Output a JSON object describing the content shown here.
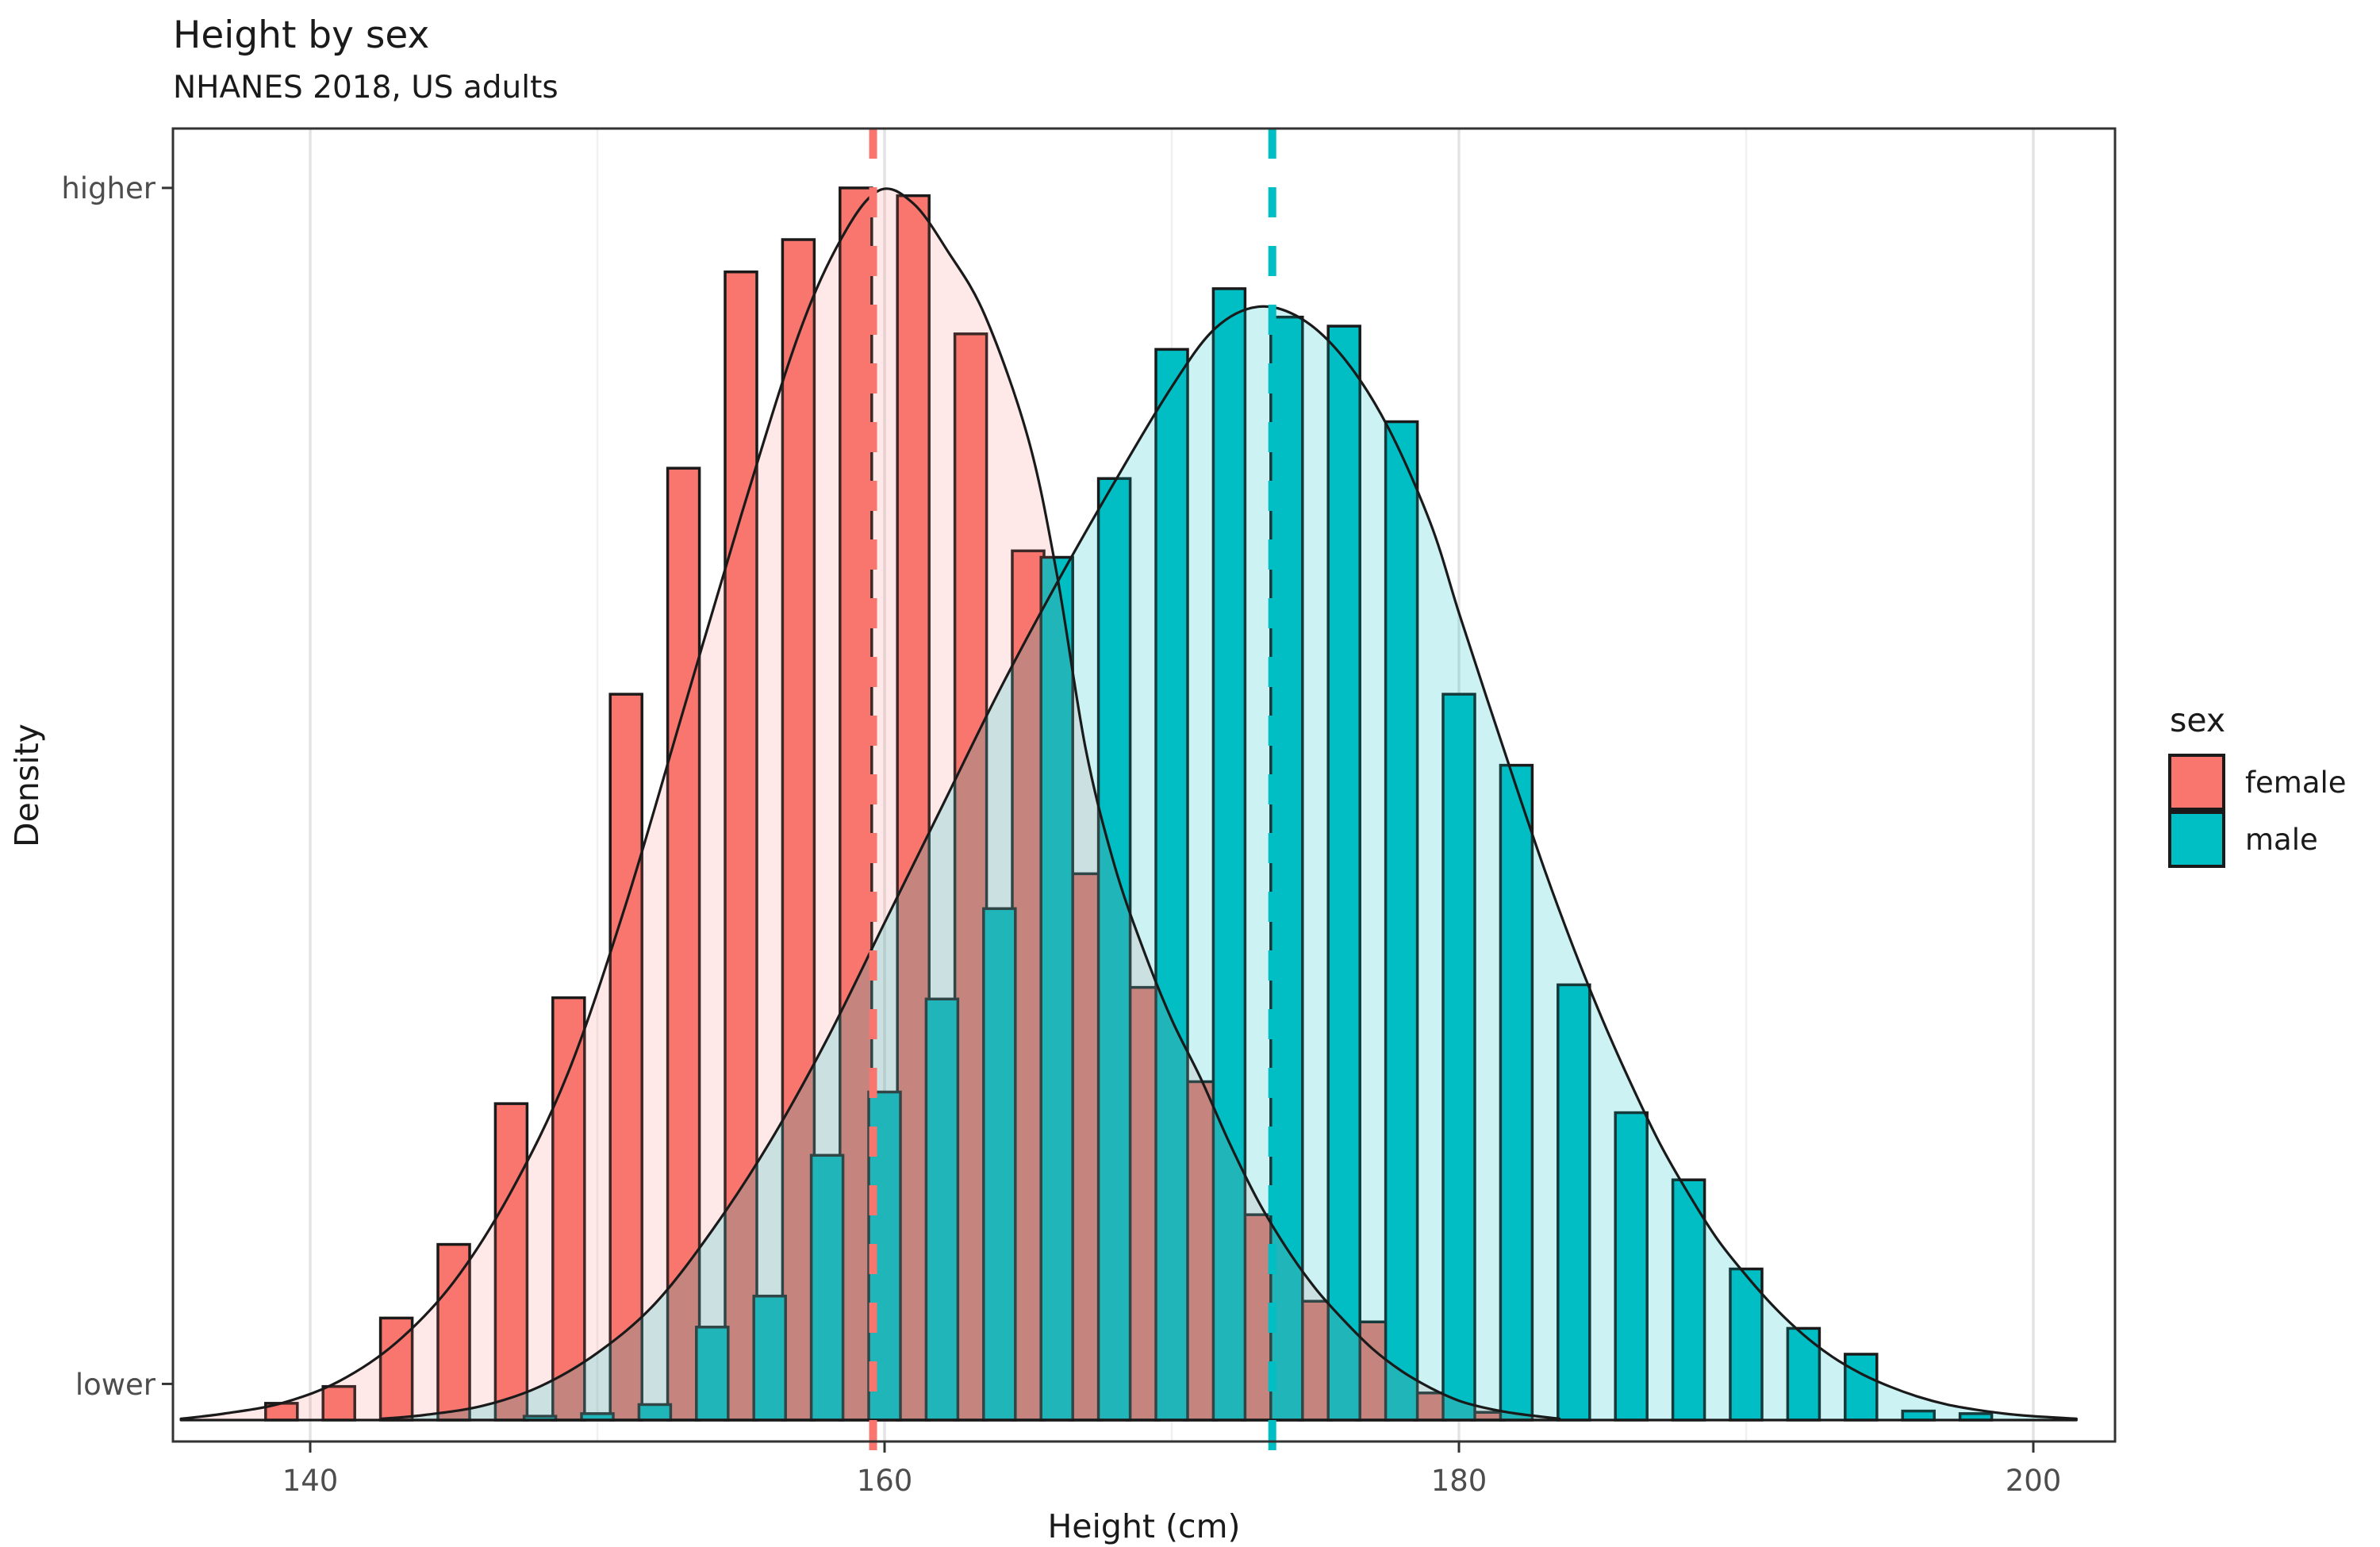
{
  "title": "Height by sex",
  "subtitle": "NHANES 2018, US adults",
  "legend": {
    "title": "sex",
    "items": [
      {
        "label": "female",
        "color": "#F8766D"
      },
      {
        "label": "male",
        "color": "#00BFC4"
      }
    ]
  },
  "chart_data": {
    "type": "histogram+density",
    "title": "Height by sex",
    "subtitle": "NHANES 2018, US adults",
    "x_label": "Height (cm)",
    "y_label": "Density",
    "x_major_ticks": [
      140,
      160,
      180,
      200
    ],
    "x_minor_gridlines": [
      150,
      170,
      190
    ],
    "x_range": [
      135,
      203
    ],
    "y_range_note": "density axis shown qualitatively, 0 = baseline, 1 = panel top",
    "y_tick_labels": [
      {
        "label": "higher",
        "density": 0.954
      },
      {
        "label": "lower",
        "density": 0.028
      }
    ],
    "grid": "vertical-only",
    "legend_position": "right",
    "bin_width_cm": 2,
    "series": [
      {
        "name": "female",
        "color": "#F8766D",
        "area_fill": "rgba(248,118,109,0.16)",
        "mean_height_cm": 159.6,
        "bins": [
          [
            139,
            0.013
          ],
          [
            141,
            0.026
          ],
          [
            143,
            0.079
          ],
          [
            145,
            0.136
          ],
          [
            147,
            0.245
          ],
          [
            149,
            0.327
          ],
          [
            151,
            0.562
          ],
          [
            153,
            0.737
          ],
          [
            155,
            0.889
          ],
          [
            157,
            0.914
          ],
          [
            159,
            0.954
          ],
          [
            161,
            0.948
          ],
          [
            163,
            0.841
          ],
          [
            165,
            0.673
          ],
          [
            167,
            0.423
          ],
          [
            169,
            0.335
          ],
          [
            171,
            0.262
          ],
          [
            173,
            0.159
          ],
          [
            175,
            0.092
          ],
          [
            177,
            0.076
          ],
          [
            179,
            0.021
          ],
          [
            181,
            0.006
          ]
        ],
        "density_curve": [
          [
            135.5,
            0.001
          ],
          [
            137,
            0.005
          ],
          [
            139,
            0.013
          ],
          [
            141,
            0.03
          ],
          [
            143,
            0.06
          ],
          [
            145,
            0.107
          ],
          [
            147,
            0.177
          ],
          [
            149,
            0.27
          ],
          [
            151,
            0.4
          ],
          [
            153,
            0.55
          ],
          [
            155,
            0.7
          ],
          [
            157,
            0.84
          ],
          [
            158.5,
            0.915
          ],
          [
            159.8,
            0.952
          ],
          [
            161,
            0.942
          ],
          [
            162.2,
            0.905
          ],
          [
            163.5,
            0.855
          ],
          [
            165,
            0.76
          ],
          [
            166,
            0.655
          ],
          [
            167,
            0.52
          ],
          [
            168,
            0.43
          ],
          [
            169,
            0.365
          ],
          [
            170,
            0.31
          ],
          [
            171,
            0.265
          ],
          [
            172,
            0.215
          ],
          [
            173,
            0.17
          ],
          [
            174,
            0.133
          ],
          [
            175,
            0.102
          ],
          [
            176,
            0.077
          ],
          [
            177,
            0.055
          ],
          [
            178,
            0.038
          ],
          [
            179,
            0.025
          ],
          [
            180,
            0.015
          ],
          [
            181,
            0.009
          ],
          [
            182,
            0.005
          ],
          [
            183.5,
            0.001
          ]
        ]
      },
      {
        "name": "male",
        "color": "#00BFC4",
        "area_fill": "rgba(0,191,196,0.20)",
        "mean_height_cm": 173.5,
        "bins": [
          [
            148,
            0.003
          ],
          [
            150,
            0.005
          ],
          [
            152,
            0.012
          ],
          [
            154,
            0.072
          ],
          [
            156,
            0.096
          ],
          [
            158,
            0.205
          ],
          [
            160,
            0.254
          ],
          [
            162,
            0.326
          ],
          [
            164,
            0.396
          ],
          [
            166,
            0.668
          ],
          [
            168,
            0.729
          ],
          [
            170,
            0.829
          ],
          [
            172,
            0.876
          ],
          [
            174,
            0.854
          ],
          [
            176,
            0.847
          ],
          [
            178,
            0.773
          ],
          [
            180,
            0.562
          ],
          [
            182,
            0.507
          ],
          [
            184,
            0.337
          ],
          [
            186,
            0.238
          ],
          [
            188,
            0.186
          ],
          [
            190,
            0.117
          ],
          [
            192,
            0.071
          ],
          [
            194,
            0.051
          ],
          [
            196,
            0.007
          ],
          [
            198,
            0.005
          ]
        ],
        "density_curve": [
          [
            142.5,
            0.001
          ],
          [
            144,
            0.004
          ],
          [
            146,
            0.011
          ],
          [
            148,
            0.026
          ],
          [
            150,
            0.052
          ],
          [
            152,
            0.09
          ],
          [
            154,
            0.147
          ],
          [
            156,
            0.215
          ],
          [
            158,
            0.295
          ],
          [
            160,
            0.385
          ],
          [
            162,
            0.475
          ],
          [
            164,
            0.565
          ],
          [
            166,
            0.648
          ],
          [
            168,
            0.726
          ],
          [
            170,
            0.8
          ],
          [
            171.5,
            0.845
          ],
          [
            173,
            0.862
          ],
          [
            174.5,
            0.853
          ],
          [
            176,
            0.822
          ],
          [
            177.5,
            0.77
          ],
          [
            179,
            0.695
          ],
          [
            180,
            0.625
          ],
          [
            181,
            0.557
          ],
          [
            182,
            0.49
          ],
          [
            183,
            0.425
          ],
          [
            184,
            0.365
          ],
          [
            185,
            0.31
          ],
          [
            186,
            0.26
          ],
          [
            187,
            0.214
          ],
          [
            188,
            0.175
          ],
          [
            189,
            0.14
          ],
          [
            190,
            0.112
          ],
          [
            191,
            0.087
          ],
          [
            192,
            0.066
          ],
          [
            193,
            0.049
          ],
          [
            194,
            0.036
          ],
          [
            195,
            0.026
          ],
          [
            196,
            0.018
          ],
          [
            197,
            0.012
          ],
          [
            198,
            0.008
          ],
          [
            199,
            0.005
          ],
          [
            200,
            0.003
          ],
          [
            201.5,
            0.001
          ]
        ]
      }
    ]
  }
}
